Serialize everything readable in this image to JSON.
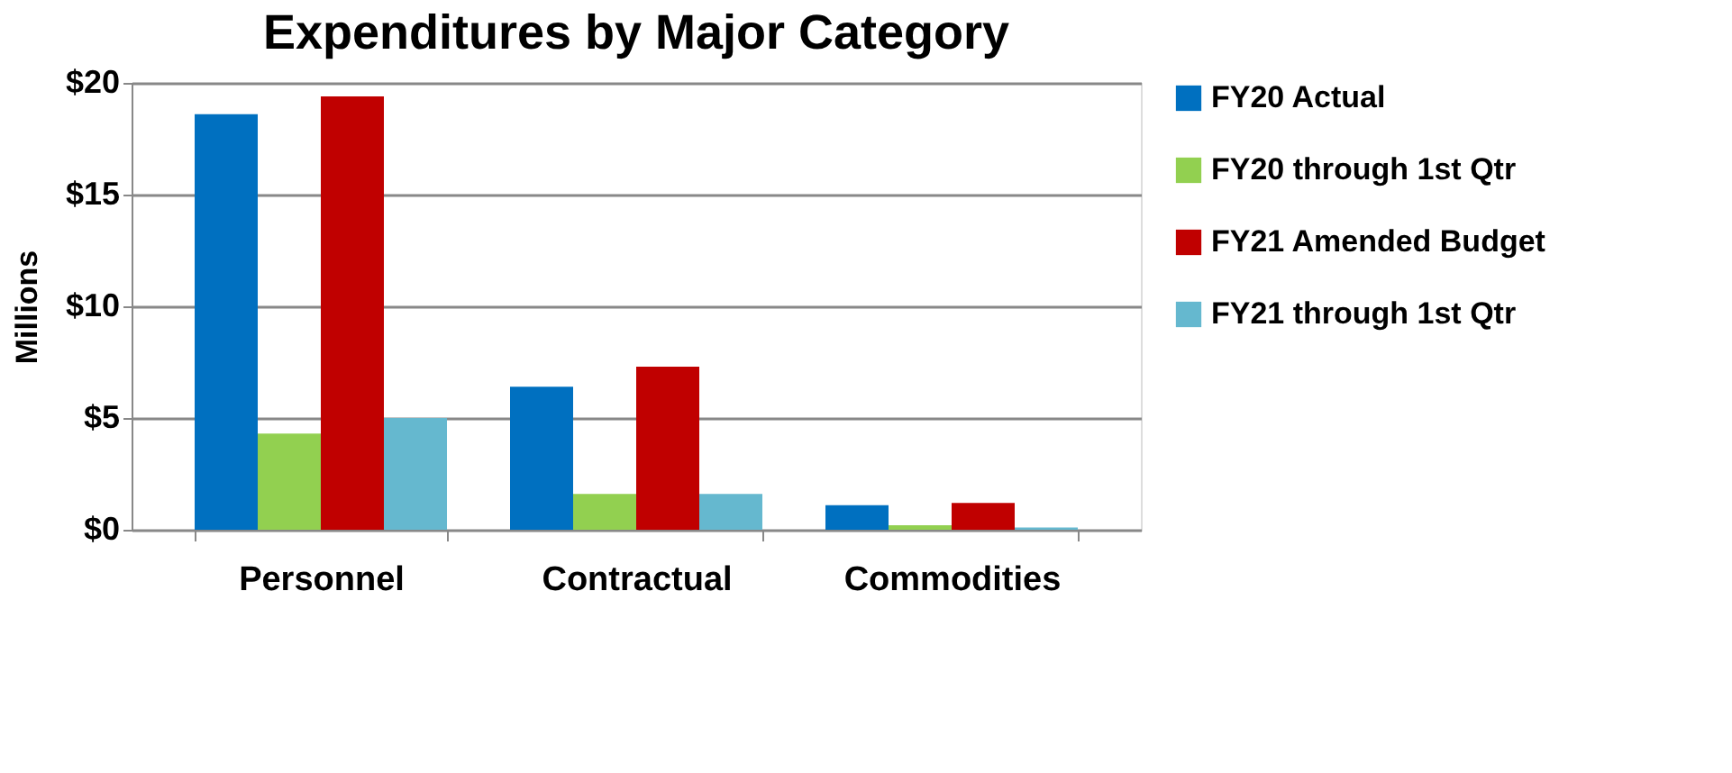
{
  "chart_data": {
    "type": "bar",
    "title": "Expenditures by Major Category",
    "ylabel": "Millions",
    "categories": [
      "Personnel",
      "Contractual",
      "Commodities"
    ],
    "series": [
      {
        "name": "FY20 Actual",
        "color": "#0070c0",
        "values": [
          18.6,
          6.4,
          1.1
        ]
      },
      {
        "name": "FY20 through 1st Qtr",
        "color": "#92d050",
        "values": [
          4.3,
          1.6,
          0.2
        ]
      },
      {
        "name": "FY21 Amended Budget",
        "color": "#c00000",
        "values": [
          19.4,
          7.3,
          1.2
        ]
      },
      {
        "name": "FY21 through 1st Qtr",
        "color": "#65b8cf",
        "values": [
          5.0,
          1.6,
          0.1
        ]
      }
    ],
    "ylim": [
      0,
      20
    ],
    "yticks": [
      {
        "value": 0,
        "label": "$0"
      },
      {
        "value": 5,
        "label": "$5"
      },
      {
        "value": 10,
        "label": "$10"
      },
      {
        "value": 15,
        "label": "$15"
      },
      {
        "value": 20,
        "label": "$20"
      }
    ],
    "grid": "y",
    "legend": "right"
  }
}
